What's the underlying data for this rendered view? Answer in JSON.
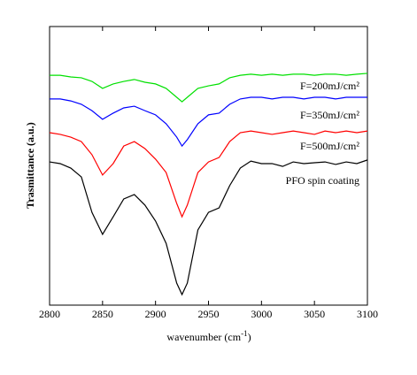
{
  "chart_data": {
    "type": "line",
    "x_label": [
      "wavenumber (cm",
      "-1",
      ")"
    ],
    "y_label": "Trasmittance (a.u.)",
    "x": [
      2800,
      2810,
      2820,
      2830,
      2840,
      2850,
      2860,
      2870,
      2880,
      2890,
      2900,
      2910,
      2920,
      2925,
      2930,
      2940,
      2950,
      2960,
      2970,
      2980,
      2990,
      3000,
      3010,
      3020,
      3030,
      3040,
      3050,
      3060,
      3070,
      3080,
      3090,
      3100
    ],
    "series": [
      {
        "name": "F=200mJ/cm²",
        "color": "#00e000",
        "values": [
          82.5,
          82.5,
          81.9,
          81.6,
          80.3,
          77.8,
          79.4,
          80.3,
          81.0,
          80.0,
          79.4,
          77.8,
          74.6,
          73.0,
          74.6,
          77.8,
          78.7,
          79.4,
          81.6,
          82.5,
          82.9,
          82.5,
          82.9,
          82.5,
          82.9,
          82.9,
          82.5,
          82.9,
          82.9,
          82.5,
          82.9,
          83.2
        ]
      },
      {
        "name": "F=350mJ/cm²",
        "color": "#0000ff",
        "values": [
          74.0,
          74.0,
          73.3,
          72.1,
          69.8,
          66.7,
          68.9,
          70.8,
          71.4,
          69.8,
          68.3,
          65.1,
          60.3,
          57.1,
          59.4,
          65.1,
          68.3,
          68.9,
          72.1,
          74.0,
          74.6,
          74.6,
          74.0,
          74.6,
          74.6,
          74.0,
          74.6,
          74.6,
          74.0,
          74.6,
          74.6,
          74.6
        ]
      },
      {
        "name": "F=500mJ/cm²",
        "color": "#ff0000",
        "values": [
          61.9,
          61.3,
          60.3,
          58.7,
          54.0,
          46.7,
          50.8,
          57.1,
          58.7,
          56.2,
          52.4,
          47.6,
          36.5,
          31.7,
          35.9,
          47.6,
          51.4,
          53.0,
          58.7,
          61.9,
          62.5,
          61.9,
          61.3,
          61.9,
          62.5,
          61.9,
          61.3,
          62.5,
          61.9,
          62.5,
          61.9,
          62.5
        ]
      },
      {
        "name": "PFO spin coating",
        "color": "#000000",
        "values": [
          51.4,
          50.8,
          49.2,
          46.0,
          33.3,
          25.4,
          31.7,
          38.1,
          39.7,
          35.9,
          30.2,
          22.2,
          7.9,
          3.8,
          7.9,
          27.0,
          33.3,
          34.9,
          42.9,
          49.2,
          51.7,
          50.8,
          50.8,
          49.8,
          51.4,
          50.8,
          51.1,
          51.4,
          50.5,
          51.4,
          50.8,
          52.1
        ]
      }
    ],
    "xlim": [
      2800,
      3100
    ],
    "xticks": [
      2800,
      2850,
      2900,
      2950,
      3000,
      3050,
      3100
    ],
    "ylim": [
      0,
      100
    ],
    "grid": false
  }
}
